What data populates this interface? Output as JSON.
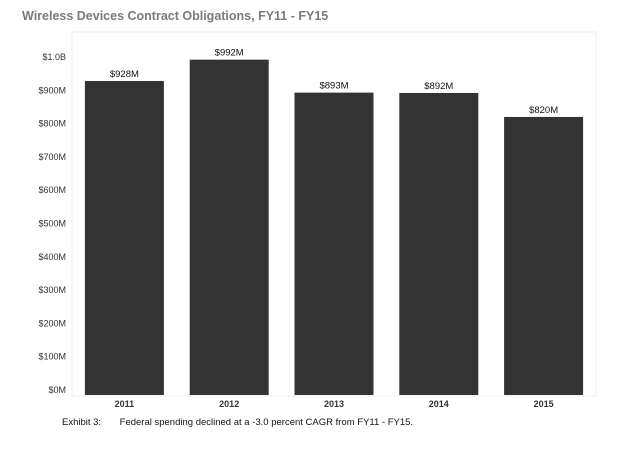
{
  "chart_data": {
    "type": "bar",
    "title": "Wireless Devices Contract Obligations, FY11 - FY15",
    "categories": [
      "2011",
      "2012",
      "2013",
      "2014",
      "2015"
    ],
    "values": [
      928,
      992,
      893,
      892,
      820
    ],
    "value_labels": [
      "$928M",
      "$992M",
      "$893M",
      "$892M",
      "$820M"
    ],
    "value_unit": "millions USD",
    "ylim": [
      0,
      1000
    ],
    "yticks": [
      0,
      100,
      200,
      300,
      400,
      500,
      600,
      700,
      800,
      900,
      1000
    ],
    "ytick_labels": [
      "$0M",
      "$100M",
      "$200M",
      "$300M",
      "$400M",
      "$500M",
      "$600M",
      "$700M",
      "$800M",
      "$900M",
      "$1.0B"
    ],
    "xlabel": "",
    "ylabel": "",
    "grid": false,
    "legend": "none",
    "bar_color": "#333333"
  },
  "caption": {
    "label": "Exhibit 3:",
    "text": "Federal spending declined at a -3.0 percent CAGR from FY11 - FY15."
  }
}
